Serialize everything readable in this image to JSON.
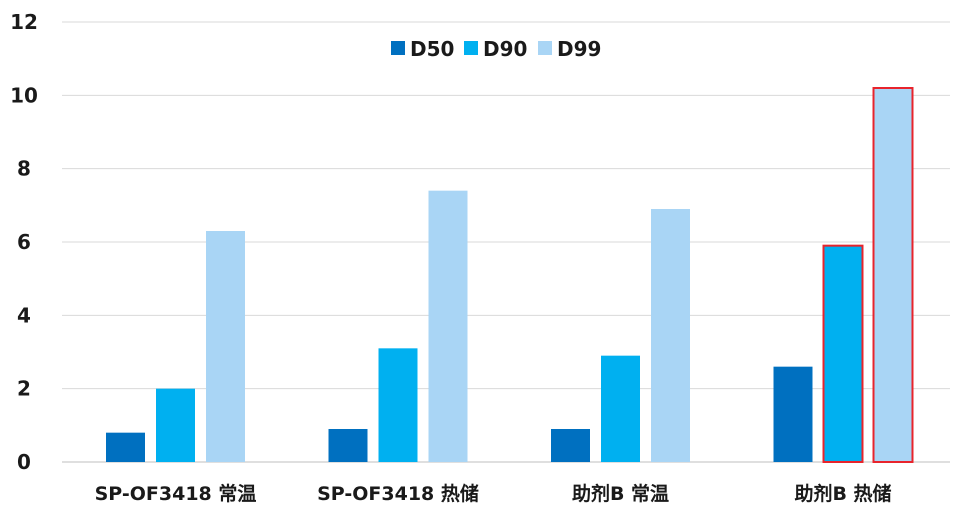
{
  "chart_data": {
    "type": "bar",
    "title": "",
    "xlabel": "",
    "ylabel": "",
    "categories": [
      "SP-OF3418 常温",
      "SP-OF3418 热储",
      "助剂B 常温",
      "助剂B 热储"
    ],
    "series": [
      {
        "name": "D50",
        "values": [
          0.8,
          0.9,
          0.9,
          2.6
        ],
        "color": "#0070C0"
      },
      {
        "name": "D90",
        "values": [
          2.0,
          3.1,
          2.9,
          5.9
        ],
        "color": "#00B0F0"
      },
      {
        "name": "D99",
        "values": [
          6.3,
          7.4,
          6.9,
          10.2
        ],
        "color": "#A9D5F5"
      }
    ],
    "highlighted": [
      {
        "series": "D90",
        "category": "助剂B 热储",
        "outline_color": "#E8242C"
      },
      {
        "series": "D99",
        "category": "助剂B 热储",
        "outline_color": "#E8242C"
      }
    ],
    "ylim": [
      0,
      12
    ],
    "yticks": [
      0,
      2,
      4,
      6,
      8,
      10,
      12
    ],
    "grid": true,
    "legend_position": "top-center"
  }
}
